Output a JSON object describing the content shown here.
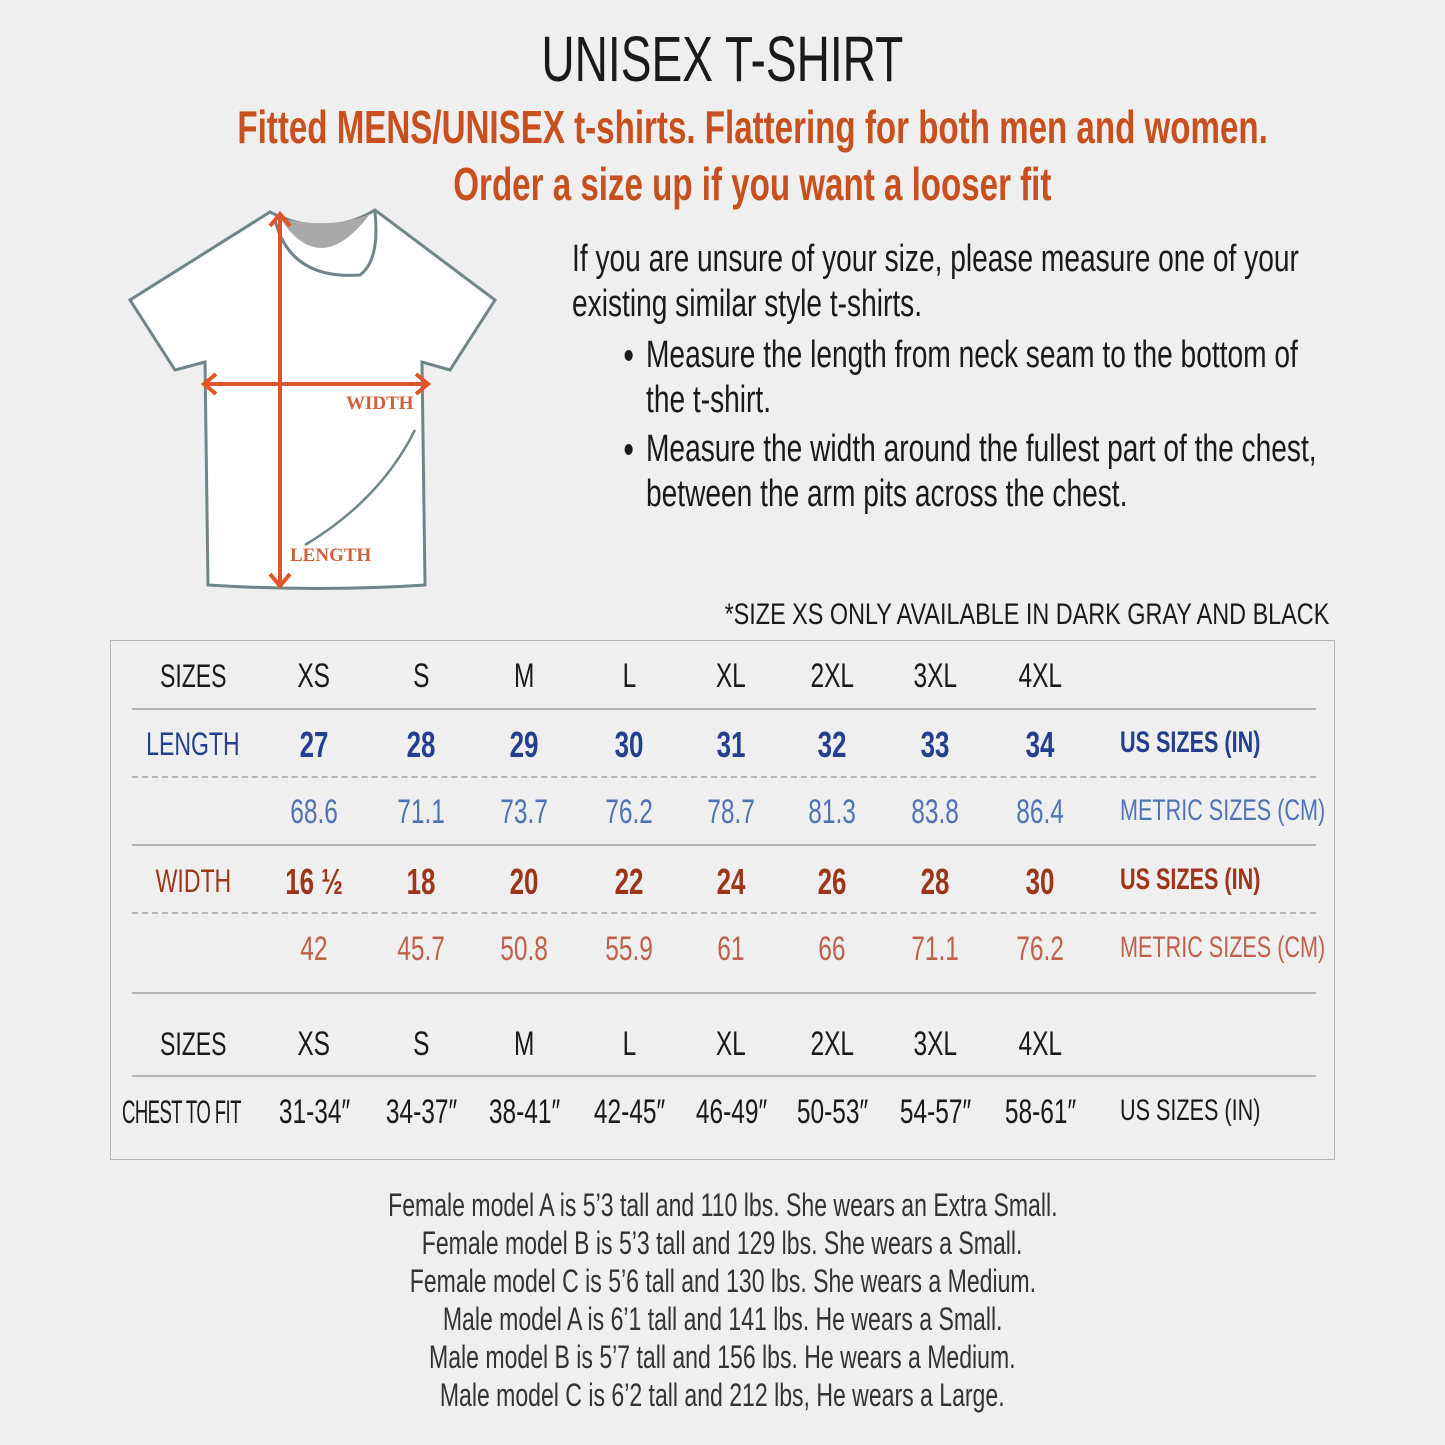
{
  "title": "UNISEX T-SHIRT",
  "subtitle": [
    "Fitted MENS/UNISEX t-shirts. Flattering for both men and women.",
    "Order a size up if you want a looser fit"
  ],
  "diagram": {
    "width_label": "WIDTH",
    "length_label": "LENGTH"
  },
  "instructions": {
    "intro": "If you are unsure of your size, please measure one of your existing similar style t-shirts.",
    "bullets": [
      "Measure the length from neck seam to the bottom of the t-shirt.",
      "Measure the width around the fullest part of the chest, between the arm pits across the chest."
    ]
  },
  "note": "*SIZE XS ONLY AVAILABLE IN DARK GRAY AND BLACK",
  "colors": {
    "accent": "#c8501e",
    "length_us": "#233f8f",
    "length_metric": "#4f74b5",
    "width_us": "#9c3519",
    "width_metric": "#c0614a"
  },
  "table": {
    "sizes_label": "SIZES",
    "sizes": [
      "XS",
      "S",
      "M",
      "L",
      "XL",
      "2XL",
      "3XL",
      "4XL"
    ],
    "length": {
      "label": "LENGTH",
      "us": [
        "27",
        "28",
        "29",
        "30",
        "31",
        "32",
        "33",
        "34"
      ],
      "metric": [
        "68.6",
        "71.1",
        "73.7",
        "76.2",
        "78.7",
        "81.3",
        "83.8",
        "86.4"
      ],
      "us_unit": "US SIZES (IN)",
      "metric_unit": "METRIC SIZES (CM)"
    },
    "width": {
      "label": "WIDTH",
      "us": [
        "16 ½",
        "18",
        "20",
        "22",
        "24",
        "26",
        "28",
        "30"
      ],
      "metric": [
        "42",
        "45.7",
        "50.8",
        "55.9",
        "61",
        "66",
        "71.1",
        "76.2"
      ],
      "us_unit": "US SIZES (IN)",
      "metric_unit": "METRIC SIZES (CM)"
    },
    "chest": {
      "label": "CHEST TO FIT",
      "values": [
        "31-34″",
        "34-37″",
        "38-41″",
        "42-45″",
        "46-49″",
        "50-53″",
        "54-57″",
        "58-61″"
      ],
      "unit": "US SIZES (IN)"
    }
  },
  "models": [
    "Female model A is 5’3 tall and 110 lbs. She wears an Extra Small.",
    "Female model B is 5’3 tall and 129 lbs. She wears a Small.",
    "Female model C is 5’6 tall and 130 lbs. She wears a Medium.",
    "Male model A is 6’1 tall and 141 lbs. He wears a Small.",
    "Male model B is 5’7 tall and 156 lbs. He wears a Medium.",
    "Male model C is 6’2 tall and 212 lbs, He wears a Large."
  ]
}
